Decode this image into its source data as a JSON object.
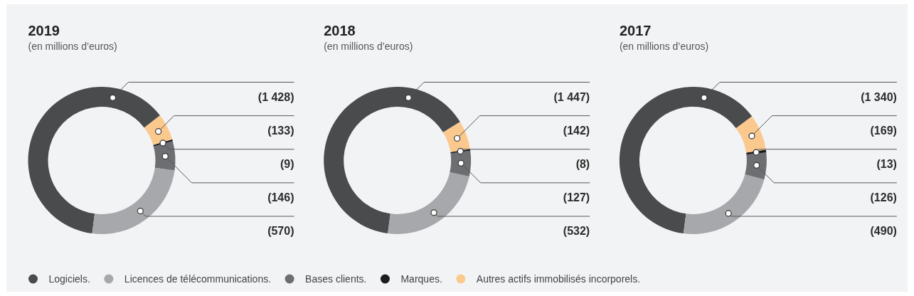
{
  "chart_data": [
    {
      "type": "donut",
      "title": "2019",
      "subtitle": "(en millions d’euros)",
      "categories": [
        "Logiciels.",
        "Licences de télécommunications.",
        "Bases clients.",
        "Marques.",
        "Autres actifs immobilisés incorporels."
      ],
      "values": [
        1428,
        570,
        146,
        9,
        133
      ],
      "value_labels": [
        "(1 428)",
        "(570)",
        "(146)",
        "(9)",
        "(133)"
      ],
      "colors": [
        "#4a4b4d",
        "#a7a8ab",
        "#6d6e71",
        "#1d1d1f",
        "#fbc98e"
      ],
      "legend": "bottom"
    },
    {
      "type": "donut",
      "title": "2018",
      "subtitle": "(en millions d’euros)",
      "categories": [
        null,
        null,
        null,
        null,
        null
      ],
      "values": [
        1447,
        532,
        127,
        8,
        142
      ],
      "value_labels": [
        "(1 447)",
        "(532)",
        "(127)",
        "(8)",
        "(142)"
      ],
      "colors": [
        "#4a4b4d",
        "#a7a8ab",
        "#6d6e71",
        "#1d1d1f",
        "#fbc98e"
      ]
    },
    {
      "type": "donut",
      "title": "2017",
      "subtitle": "(en millions d’euros)",
      "categories": [
        null,
        null,
        null,
        null,
        null
      ],
      "values": [
        1340,
        490,
        126,
        13,
        169
      ],
      "value_labels": [
        "(1 340)",
        "(490)",
        "(126)",
        "(13)",
        "(169)"
      ],
      "colors": [
        "#4a4b4d",
        "#a7a8ab",
        "#6d6e71",
        "#1d1d1f",
        "#fbc98e"
      ]
    }
  ]
}
